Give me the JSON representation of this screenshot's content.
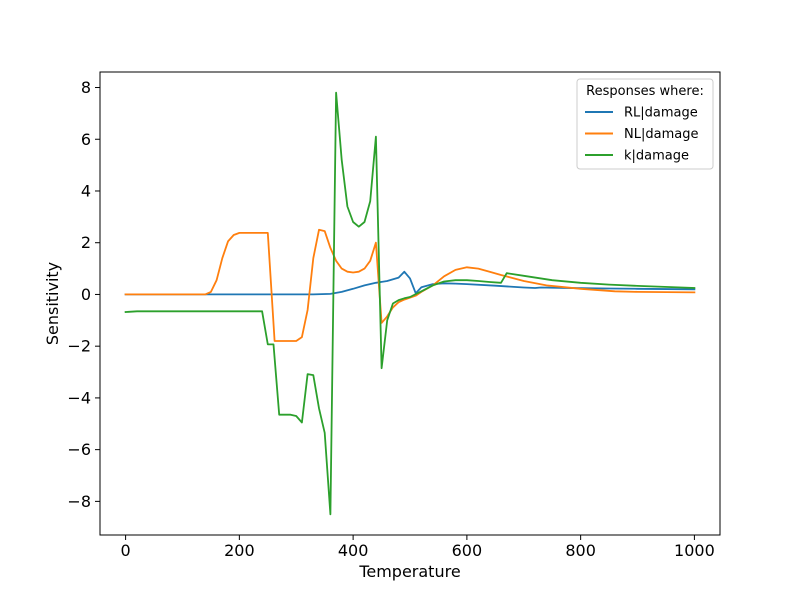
{
  "chart_data": {
    "type": "line",
    "xlabel": "Temperature",
    "ylabel": "Sensitivity",
    "xlim": [
      -45,
      1045
    ],
    "ylim": [
      -9.3,
      8.6
    ],
    "xticks": [
      0,
      200,
      400,
      600,
      800,
      1000
    ],
    "xtick_labels": [
      "0",
      "200",
      "400",
      "600",
      "800",
      "1000"
    ],
    "yticks": [
      -8,
      -6,
      -4,
      -2,
      0,
      2,
      4,
      6,
      8
    ],
    "ytick_labels": [
      "−8",
      "−6",
      "−4",
      "−2",
      "0",
      "2",
      "4",
      "6",
      "8"
    ],
    "grid": false,
    "legend": {
      "title": "Responses where:",
      "position": "upper right"
    },
    "series": [
      {
        "name": "RL|damage",
        "color": "#1f77b4",
        "points": [
          [
            0,
            0
          ],
          [
            330,
            0
          ],
          [
            360,
            0.02
          ],
          [
            380,
            0.1
          ],
          [
            400,
            0.22
          ],
          [
            420,
            0.35
          ],
          [
            440,
            0.45
          ],
          [
            460,
            0.52
          ],
          [
            480,
            0.65
          ],
          [
            490,
            0.88
          ],
          [
            500,
            0.62
          ],
          [
            510,
            0.05
          ],
          [
            520,
            0.28
          ],
          [
            540,
            0.4
          ],
          [
            560,
            0.43
          ],
          [
            580,
            0.42
          ],
          [
            600,
            0.4
          ],
          [
            650,
            0.34
          ],
          [
            700,
            0.27
          ],
          [
            720,
            0.25
          ],
          [
            730,
            0.27
          ],
          [
            750,
            0.26
          ],
          [
            800,
            0.24
          ],
          [
            850,
            0.23
          ],
          [
            900,
            0.22
          ],
          [
            1000,
            0.2
          ]
        ]
      },
      {
        "name": "NL|damage",
        "color": "#ff7f0e",
        "points": [
          [
            0,
            0
          ],
          [
            140,
            0
          ],
          [
            150,
            0.1
          ],
          [
            160,
            0.55
          ],
          [
            170,
            1.4
          ],
          [
            180,
            2.05
          ],
          [
            190,
            2.3
          ],
          [
            200,
            2.38
          ],
          [
            220,
            2.38
          ],
          [
            250,
            2.38
          ],
          [
            262,
            -1.8
          ],
          [
            270,
            -1.8
          ],
          [
            300,
            -1.8
          ],
          [
            310,
            -1.65
          ],
          [
            320,
            -0.6
          ],
          [
            330,
            1.4
          ],
          [
            340,
            2.5
          ],
          [
            350,
            2.45
          ],
          [
            360,
            1.8
          ],
          [
            370,
            1.3
          ],
          [
            380,
            1.0
          ],
          [
            390,
            0.88
          ],
          [
            400,
            0.85
          ],
          [
            410,
            0.88
          ],
          [
            420,
            1.0
          ],
          [
            430,
            1.3
          ],
          [
            440,
            2.0
          ],
          [
            450,
            -1.1
          ],
          [
            460,
            -0.85
          ],
          [
            470,
            -0.5
          ],
          [
            480,
            -0.3
          ],
          [
            490,
            -0.2
          ],
          [
            500,
            -0.12
          ],
          [
            510,
            -0.05
          ],
          [
            520,
            0.1
          ],
          [
            540,
            0.35
          ],
          [
            560,
            0.7
          ],
          [
            580,
            0.95
          ],
          [
            600,
            1.05
          ],
          [
            620,
            1.0
          ],
          [
            640,
            0.88
          ],
          [
            660,
            0.75
          ],
          [
            700,
            0.52
          ],
          [
            740,
            0.35
          ],
          [
            800,
            0.22
          ],
          [
            860,
            0.12
          ],
          [
            900,
            0.1
          ],
          [
            1000,
            0.08
          ]
        ]
      },
      {
        "name": "k|damage",
        "color": "#2ca02c",
        "points": [
          [
            0,
            -0.68
          ],
          [
            20,
            -0.65
          ],
          [
            100,
            -0.65
          ],
          [
            240,
            -0.65
          ],
          [
            250,
            -1.93
          ],
          [
            260,
            -1.93
          ],
          [
            270,
            -4.65
          ],
          [
            290,
            -4.65
          ],
          [
            300,
            -4.7
          ],
          [
            310,
            -4.95
          ],
          [
            320,
            -3.08
          ],
          [
            330,
            -3.12
          ],
          [
            340,
            -4.4
          ],
          [
            350,
            -5.35
          ],
          [
            360,
            -8.5
          ],
          [
            370,
            7.8
          ],
          [
            380,
            5.2
          ],
          [
            390,
            3.4
          ],
          [
            400,
            2.8
          ],
          [
            410,
            2.62
          ],
          [
            420,
            2.8
          ],
          [
            430,
            3.6
          ],
          [
            440,
            6.1
          ],
          [
            450,
            -2.85
          ],
          [
            460,
            -1.0
          ],
          [
            470,
            -0.35
          ],
          [
            480,
            -0.22
          ],
          [
            490,
            -0.15
          ],
          [
            500,
            -0.1
          ],
          [
            520,
            0.12
          ],
          [
            540,
            0.35
          ],
          [
            560,
            0.5
          ],
          [
            580,
            0.55
          ],
          [
            600,
            0.55
          ],
          [
            620,
            0.52
          ],
          [
            640,
            0.48
          ],
          [
            660,
            0.45
          ],
          [
            670,
            0.82
          ],
          [
            700,
            0.72
          ],
          [
            750,
            0.55
          ],
          [
            800,
            0.45
          ],
          [
            850,
            0.38
          ],
          [
            900,
            0.33
          ],
          [
            1000,
            0.25
          ]
        ]
      }
    ]
  }
}
